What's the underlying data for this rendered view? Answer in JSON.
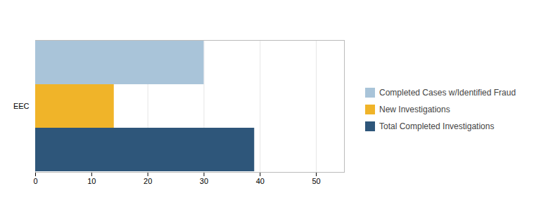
{
  "chart_data": {
    "type": "bar",
    "orientation": "horizontal",
    "categories": [
      "EEC"
    ],
    "series": [
      {
        "name": "Completed Cases w/Identified Fraud",
        "color": "#a9c4d9",
        "values": [
          30
        ]
      },
      {
        "name": "New Investigations",
        "color": "#f0b429",
        "values": [
          14
        ]
      },
      {
        "name": "Total Completed Investigations",
        "color": "#2e567a",
        "values": [
          39
        ]
      }
    ],
    "xlim": [
      0,
      55
    ],
    "xticks": [
      0,
      10,
      20,
      30,
      40,
      50
    ],
    "grid": true,
    "legend": "right"
  }
}
